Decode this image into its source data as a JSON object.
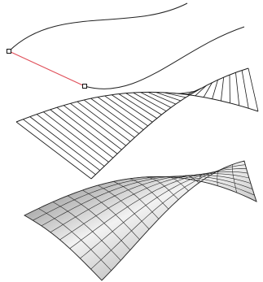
{
  "viewport": {
    "background": "#ffffff",
    "icon": "modeling-viewport-icon"
  },
  "colors": {
    "curve": "#222222",
    "connector": "#e0505a",
    "handle_fill": "#ffffff",
    "handle_stroke": "#111111",
    "ruled_lines": "#1a1a1a",
    "wire": "#2a2a2a",
    "shade_light": "#f2f2f2",
    "shade_mid": "#bdbdbd",
    "shade_dark": "#6d6d6d"
  },
  "objects": {
    "rail_curve_1": {
      "kind": "curve",
      "selected": false
    },
    "rail_curve_2": {
      "kind": "curve",
      "selected": false
    },
    "connector_segment": {
      "kind": "line",
      "selected": true
    },
    "handles": [
      {
        "name": "start-handle"
      },
      {
        "name": "end-handle"
      }
    ],
    "ruled_surface": {
      "kind": "ruled-lines",
      "rulings": 32
    },
    "shaded_surface": {
      "kind": "shaded-mesh",
      "u_divisions": 14,
      "v_divisions": 8
    }
  }
}
